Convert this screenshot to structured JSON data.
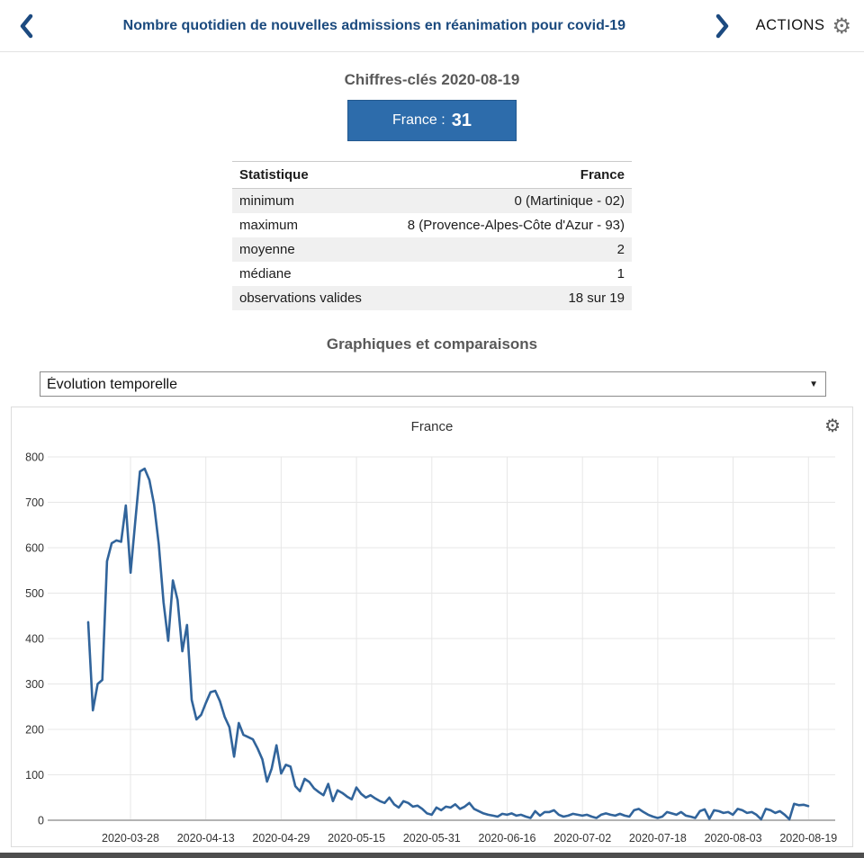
{
  "header": {
    "title": "Nombre quotidien de nouvelles admissions en réanimation pour covid-19",
    "actions_label": "ACTIONS"
  },
  "icons": {
    "gear": "⚙",
    "dropdown_arrow": "▼",
    "prev": "chevron-left",
    "next": "chevron-right"
  },
  "colors": {
    "title_blue": "#1b4a7e",
    "accent_blue": "#2d6cab",
    "line_blue": "#31649b"
  },
  "key_figures": {
    "heading": "Chiffres-clés 2020-08-19",
    "highlight": {
      "label": "France :",
      "value": "31"
    }
  },
  "stats_table": {
    "columns": [
      "Statistique",
      "France"
    ],
    "rows": [
      [
        "minimum",
        "0 (Martinique - 02)"
      ],
      [
        "maximum",
        "8 (Provence-Alpes-Côte d'Azur - 93)"
      ],
      [
        "moyenne",
        "2"
      ],
      [
        "médiane",
        "1"
      ],
      [
        "observations valides",
        "18 sur 19"
      ]
    ]
  },
  "graphs": {
    "heading": "Graphiques et comparaisons",
    "selected_option": "Évolution temporelle",
    "options": [
      "Évolution temporelle"
    ]
  },
  "chart_data": {
    "type": "line",
    "title": "France",
    "series_name": "France",
    "x_start": "2020-03-19",
    "x_step_days": 1,
    "x_tick_labels": [
      "2020-03-28",
      "2020-04-13",
      "2020-04-29",
      "2020-05-15",
      "2020-05-31",
      "2020-06-16",
      "2020-07-02",
      "2020-07-18",
      "2020-08-03",
      "2020-08-19"
    ],
    "y_ticks": [
      0,
      100,
      200,
      300,
      400,
      500,
      600,
      700,
      800
    ],
    "ylim": [
      0,
      800
    ],
    "grid": true,
    "legend": "none",
    "line_color": "#31649b",
    "values": [
      436,
      242,
      300,
      309,
      570,
      610,
      616,
      613,
      693,
      545,
      658,
      768,
      774,
      749,
      695,
      608,
      480,
      395,
      528,
      485,
      372,
      430,
      265,
      222,
      232,
      258,
      282,
      285,
      262,
      228,
      205,
      140,
      214,
      188,
      183,
      178,
      158,
      134,
      85,
      114,
      165,
      103,
      122,
      118,
      75,
      64,
      91,
      84,
      70,
      62,
      55,
      80,
      42,
      66,
      60,
      52,
      46,
      72,
      58,
      50,
      55,
      48,
      42,
      38,
      50,
      35,
      28,
      42,
      38,
      30,
      32,
      25,
      15,
      12,
      28,
      22,
      30,
      28,
      35,
      25,
      30,
      38,
      25,
      20,
      15,
      12,
      10,
      8,
      14,
      12,
      15,
      10,
      12,
      8,
      5,
      20,
      10,
      18,
      18,
      22,
      12,
      8,
      10,
      14,
      12,
      10,
      12,
      8,
      5,
      12,
      15,
      12,
      10,
      14,
      10,
      8,
      22,
      25,
      18,
      12,
      8,
      5,
      8,
      18,
      15,
      12,
      18,
      10,
      8,
      5,
      20,
      24,
      3,
      22,
      20,
      16,
      18,
      12,
      25,
      22,
      16,
      18,
      12,
      2,
      25,
      22,
      16,
      20,
      12,
      2,
      36,
      33,
      34,
      31
    ]
  }
}
